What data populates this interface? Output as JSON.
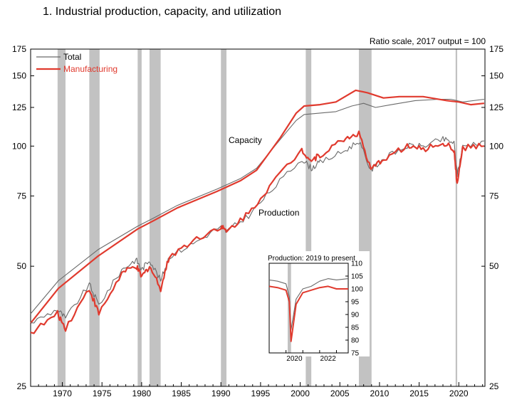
{
  "figure": {
    "title": "1.  Industrial production, capacity, and utilization",
    "scale_note": "Ratio scale, 2017 output = 100"
  },
  "colors": {
    "total": "#6a6a6a",
    "manufacturing": "#e03a2e",
    "recession": "#c2c2c2"
  },
  "chart_data": [
    {
      "type": "line",
      "title": "",
      "y_scale": "log",
      "ylim": [
        25,
        175
      ],
      "xlim": [
        1966.5,
        2023.8
      ],
      "y_ticks": [
        25,
        50,
        75,
        100,
        125,
        150,
        175
      ],
      "x_ticks": [
        1970,
        1975,
        1980,
        1985,
        1990,
        1995,
        2000,
        2005,
        2010,
        2015,
        2020
      ],
      "legend": {
        "placement": "top-left",
        "entries": [
          "Total",
          "Manufacturing"
        ]
      },
      "annotations": [
        "Capacity",
        "Production"
      ],
      "recessions": [
        [
          1969.9,
          1970.9
        ],
        [
          1973.9,
          1975.2
        ],
        [
          1980.0,
          1980.5
        ],
        [
          1981.5,
          1982.9
        ],
        [
          1990.5,
          1991.2
        ],
        [
          2001.2,
          2001.9
        ],
        [
          2007.9,
          2009.5
        ],
        [
          2020.1,
          2020.3
        ]
      ],
      "series": [
        {
          "name": "Capacity (Total)",
          "line": "total",
          "x": [
            1966.5,
            1970,
            1975,
            1980,
            1982,
            1985,
            1990,
            1993,
            1995,
            1998,
            2000,
            2001,
            2003,
            2005,
            2007,
            2008.5,
            2010,
            2012,
            2015,
            2018,
            2019.5,
            2021,
            2023.7
          ],
          "y": [
            38,
            46,
            55,
            63,
            66,
            71,
            78,
            83,
            88,
            104,
            116,
            120,
            121,
            122,
            126,
            128,
            125,
            127,
            130,
            131,
            131,
            129,
            131
          ]
        },
        {
          "name": "Capacity (Manufacturing)",
          "line": "manufacturing",
          "x": [
            1966.5,
            1970,
            1975,
            1980,
            1982,
            1985,
            1990,
            1993,
            1995,
            1998,
            2000,
            2001,
            2003,
            2005,
            2007.5,
            2009,
            2011,
            2013,
            2016,
            2019,
            2020.5,
            2022,
            2023.7
          ],
          "y": [
            36,
            44,
            53,
            62,
            65,
            70,
            77,
            82,
            87,
            105,
            121,
            126,
            127,
            129,
            138,
            136,
            132,
            133,
            133,
            130,
            129,
            127,
            128
          ]
        },
        {
          "name": "Production (Total)",
          "line": "total",
          "x": [
            1966.5,
            1969.9,
            1970.9,
            1973.9,
            1975.1,
            1978,
            1979.8,
            1980.5,
            1981.5,
            1982.9,
            1984,
            1987,
            1990.5,
            1991.2,
            1994,
            1997,
            2000.7,
            2001.9,
            2003,
            2006,
            2007.9,
            2009.4,
            2011,
            2014,
            2016,
            2018.5,
            2019.9,
            2020.3,
            2021,
            2023.7
          ],
          "y": [
            36,
            39,
            37,
            45,
            40,
            49,
            52,
            49,
            52,
            46,
            53,
            57,
            63,
            61,
            67,
            78,
            93,
            88,
            91,
            97,
            103,
            87,
            93,
            100,
            100,
            104,
            102,
            85,
            100,
            103
          ]
        },
        {
          "name": "Production (Manufacturing)",
          "line": "manufacturing",
          "x": [
            1966.5,
            1969.9,
            1970.9,
            1973.9,
            1975.1,
            1978,
            1979.8,
            1980.5,
            1981.5,
            1982.9,
            1984,
            1987,
            1990.5,
            1991.2,
            1994,
            1997,
            2000.7,
            2001.9,
            2003,
            2006,
            2007.9,
            2009.4,
            2011,
            2014,
            2016,
            2018.5,
            2019.9,
            2020.3,
            2021,
            2023.7
          ],
          "y": [
            34,
            38,
            35,
            44,
            38,
            48,
            50,
            47,
            50,
            44,
            53,
            58,
            63,
            61,
            68,
            81,
            98,
            92,
            95,
            104,
            108,
            87,
            93,
            100,
            98,
            102,
            98,
            80,
            99,
            100
          ]
        }
      ]
    },
    {
      "type": "line",
      "title": "Production: 2019 to present",
      "ylim": [
        75,
        110
      ],
      "xlim": [
        2019.0,
        2023.7
      ],
      "y_ticks": [
        75,
        80,
        85,
        90,
        95,
        100,
        105,
        110
      ],
      "x_ticks": [
        2020,
        2022
      ],
      "series": [
        {
          "name": "Total",
          "line": "total",
          "x": [
            2019.0,
            2019.5,
            2020.0,
            2020.2,
            2020.3,
            2020.6,
            2021.0,
            2021.5,
            2022.0,
            2022.5,
            2023.0,
            2023.7
          ],
          "y": [
            103.5,
            103,
            102,
            97,
            84,
            96,
            100,
            101,
            103,
            104,
            103.5,
            104
          ]
        },
        {
          "name": "Manufacturing",
          "line": "manufacturing",
          "x": [
            2019.0,
            2019.5,
            2020.0,
            2020.2,
            2020.3,
            2020.6,
            2021.0,
            2021.5,
            2022.0,
            2022.5,
            2023.0,
            2023.7
          ],
          "y": [
            101,
            100.5,
            99.5,
            95,
            79.5,
            94,
            98.5,
            99.5,
            100.5,
            101,
            100,
            100
          ]
        }
      ]
    }
  ]
}
